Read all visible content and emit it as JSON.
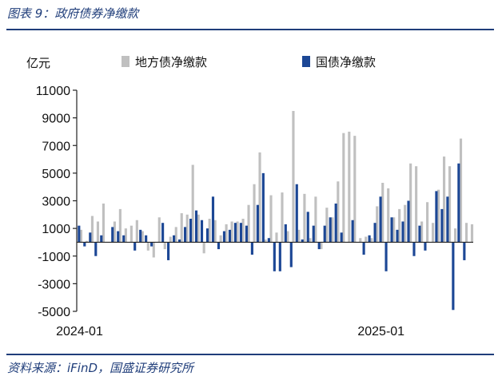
{
  "title": "图表 9：政府债券净缴款",
  "source": "资料来源：iFinD，国盛证券研究所",
  "colors": {
    "accent": "#1f3d7a",
    "local": "#c0c0c0",
    "national": "#1c4795",
    "axis": "#222222"
  },
  "chart_data": {
    "type": "bar",
    "unit": "亿元",
    "ylim": [
      -5000,
      11000
    ],
    "yticks": [
      11000,
      9000,
      7000,
      5000,
      3000,
      1000,
      -1000,
      -3000,
      -5000
    ],
    "xtick_labels": [
      {
        "label": "2024-01",
        "index": 0
      },
      {
        "label": "2025-01",
        "index": 54
      }
    ],
    "grid": false,
    "legend_position": "top",
    "series": [
      {
        "name": "地方债净缴款",
        "values": [
          900,
          100,
          1900,
          1500,
          2800,
          0,
          1500,
          2400,
          1000,
          1200,
          1600,
          800,
          -600,
          -1100,
          1800,
          -500,
          400,
          1100,
          2100,
          2000,
          5600,
          2000,
          -800,
          1700,
          1600,
          500,
          1300,
          1500,
          1500,
          1700,
          2700,
          4200,
          6500,
          200,
          3400,
          700,
          3600,
          800,
          9500,
          900,
          3500,
          300,
          3300,
          -500,
          2500,
          1800,
          4400,
          7900,
          8000,
          7700,
          300,
          400,
          300,
          2600,
          4300,
          3900,
          1800,
          2400,
          2700,
          5700,
          5500,
          1500,
          2900,
          1400,
          3800,
          6200,
          5500,
          1000,
          7500,
          1400,
          1300
        ]
      },
      {
        "name": "国债净缴款",
        "values": [
          1200,
          -300,
          700,
          -1000,
          500,
          0,
          1100,
          800,
          500,
          0,
          -600,
          900,
          500,
          -300,
          0,
          1400,
          -1300,
          500,
          200,
          1100,
          1700,
          2300,
          1600,
          1000,
          3300,
          -500,
          800,
          900,
          1400,
          1400,
          1200,
          -900,
          2700,
          5000,
          300,
          -2100,
          -2100,
          1300,
          -1800,
          4200,
          200,
          2200,
          1200,
          -500,
          1200,
          1800,
          2800,
          700,
          0,
          1600,
          0,
          -900,
          500,
          1400,
          3300,
          -2100,
          1800,
          900,
          1500,
          3000,
          -1000,
          1200,
          -600,
          0,
          3700,
          2400,
          3300,
          -4900,
          5700,
          -1300,
          0
        ]
      }
    ]
  }
}
